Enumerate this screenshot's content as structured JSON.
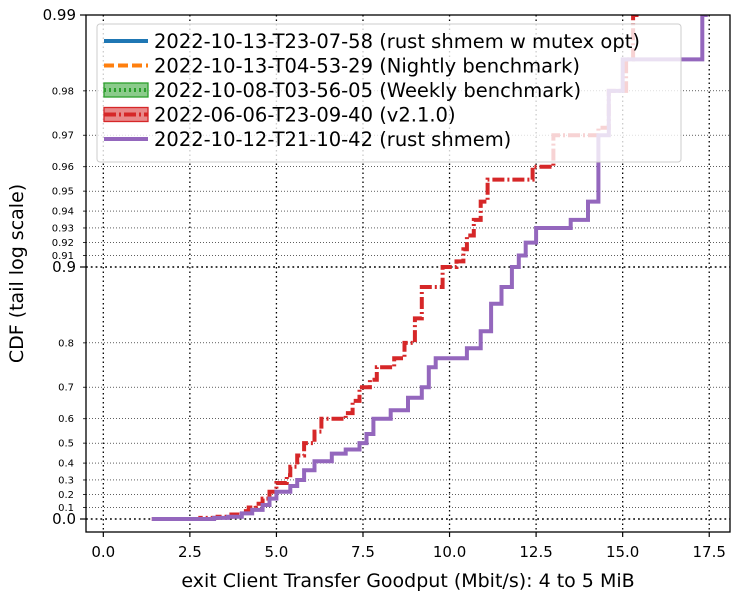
{
  "chart_data": {
    "type": "line",
    "title": "",
    "xlabel": "exit Client Transfer Goodput (Mbit/s): 4 to 5 MiB",
    "ylabel": "CDF (tail log scale)",
    "xlim": [
      -0.5,
      18.1
    ],
    "x_ticks": [
      0.0,
      2.5,
      5.0,
      7.5,
      10.0,
      12.5,
      15.0,
      17.5
    ],
    "x_tick_labels": [
      "0.0",
      "2.5",
      "5.0",
      "7.5",
      "10.0",
      "12.5",
      "15.0",
      "17.5"
    ],
    "y_scale": "tail-log",
    "y_major_ticks": [
      0.0,
      0.9,
      0.99
    ],
    "y_major_tick_labels": [
      "0.0",
      "0.9",
      "0.99"
    ],
    "y_minor_ticks": [
      0.1,
      0.2,
      0.3,
      0.4,
      0.5,
      0.6,
      0.7,
      0.8,
      0.91,
      0.92,
      0.93,
      0.94,
      0.95,
      0.96,
      0.97,
      0.98
    ],
    "y_minor_tick_labels": [
      "0.1",
      "0.2",
      "0.3",
      "0.4",
      "0.5",
      "0.6",
      "0.7",
      "0.8",
      "0.91",
      "0.92",
      "0.93",
      "0.94",
      "0.95",
      "0.96",
      "0.97",
      "0.98"
    ],
    "grid": true,
    "legend_position": "top-left",
    "series": [
      {
        "name": "2022-10-13-T23-07-58 (rust shmem w mutex opt)",
        "color": "#1f77b4",
        "style": "solid",
        "legend_patch": false,
        "points": []
      },
      {
        "name": "2022-10-13-T04-53-29 (Nightly benchmark)",
        "color": "#ff7f0e",
        "style": "dashed",
        "legend_patch": false,
        "points": []
      },
      {
        "name": "2022-10-08-T03-56-05 (Weekly benchmark)",
        "color": "#2ca02c",
        "style": "dotted",
        "legend_patch": true,
        "points": []
      },
      {
        "name": "2022-06-06-T23-09-40 (v2.1.0)",
        "color": "#d62728",
        "style": "dashdot",
        "legend_patch": true,
        "points": [
          [
            1.4,
            0.0
          ],
          [
            2.8,
            0.01
          ],
          [
            3.3,
            0.02
          ],
          [
            3.7,
            0.04
          ],
          [
            4.0,
            0.07
          ],
          [
            4.2,
            0.1
          ],
          [
            4.4,
            0.13
          ],
          [
            4.6,
            0.17
          ],
          [
            4.8,
            0.22
          ],
          [
            5.0,
            0.28
          ],
          [
            5.3,
            0.33
          ],
          [
            5.4,
            0.38
          ],
          [
            5.6,
            0.44
          ],
          [
            5.8,
            0.5
          ],
          [
            6.1,
            0.55
          ],
          [
            6.3,
            0.6
          ],
          [
            7.0,
            0.62
          ],
          [
            7.2,
            0.66
          ],
          [
            7.4,
            0.7
          ],
          [
            7.7,
            0.72
          ],
          [
            7.9,
            0.75
          ],
          [
            8.4,
            0.77
          ],
          [
            8.7,
            0.8
          ],
          [
            9.0,
            0.84
          ],
          [
            9.2,
            0.88
          ],
          [
            9.8,
            0.9
          ],
          [
            10.2,
            0.905
          ],
          [
            10.4,
            0.915
          ],
          [
            10.5,
            0.925
          ],
          [
            10.7,
            0.935
          ],
          [
            10.9,
            0.945
          ],
          [
            11.1,
            0.955
          ],
          [
            12.4,
            0.96
          ],
          [
            13.0,
            0.97
          ],
          [
            14.3,
            0.972
          ],
          [
            14.6,
            0.98
          ],
          [
            15.1,
            0.985
          ],
          [
            15.3,
            0.99
          ],
          [
            15.4,
            0.994
          ]
        ]
      },
      {
        "name": "2022-10-12-T21-10-42 (rust shmem)",
        "color": "#9467bd",
        "style": "solid",
        "legend_patch": false,
        "points": [
          [
            1.4,
            0.0
          ],
          [
            3.2,
            0.01
          ],
          [
            3.6,
            0.02
          ],
          [
            4.0,
            0.05
          ],
          [
            4.3,
            0.08
          ],
          [
            4.6,
            0.12
          ],
          [
            4.8,
            0.17
          ],
          [
            5.0,
            0.22
          ],
          [
            5.4,
            0.26
          ],
          [
            5.6,
            0.3
          ],
          [
            5.8,
            0.36
          ],
          [
            6.1,
            0.41
          ],
          [
            6.6,
            0.45
          ],
          [
            7.0,
            0.47
          ],
          [
            7.4,
            0.5
          ],
          [
            7.6,
            0.54
          ],
          [
            7.8,
            0.6
          ],
          [
            8.3,
            0.63
          ],
          [
            8.8,
            0.67
          ],
          [
            9.2,
            0.7
          ],
          [
            9.4,
            0.75
          ],
          [
            9.6,
            0.77
          ],
          [
            10.5,
            0.79
          ],
          [
            10.9,
            0.82
          ],
          [
            11.2,
            0.86
          ],
          [
            11.5,
            0.88
          ],
          [
            11.8,
            0.9
          ],
          [
            12.0,
            0.91
          ],
          [
            12.2,
            0.92
          ],
          [
            12.5,
            0.93
          ],
          [
            13.5,
            0.935
          ],
          [
            14.0,
            0.945
          ],
          [
            14.3,
            0.97
          ],
          [
            14.6,
            0.98
          ],
          [
            15.0,
            0.985
          ],
          [
            17.3,
            0.99
          ],
          [
            17.4,
            0.994
          ]
        ]
      }
    ]
  }
}
